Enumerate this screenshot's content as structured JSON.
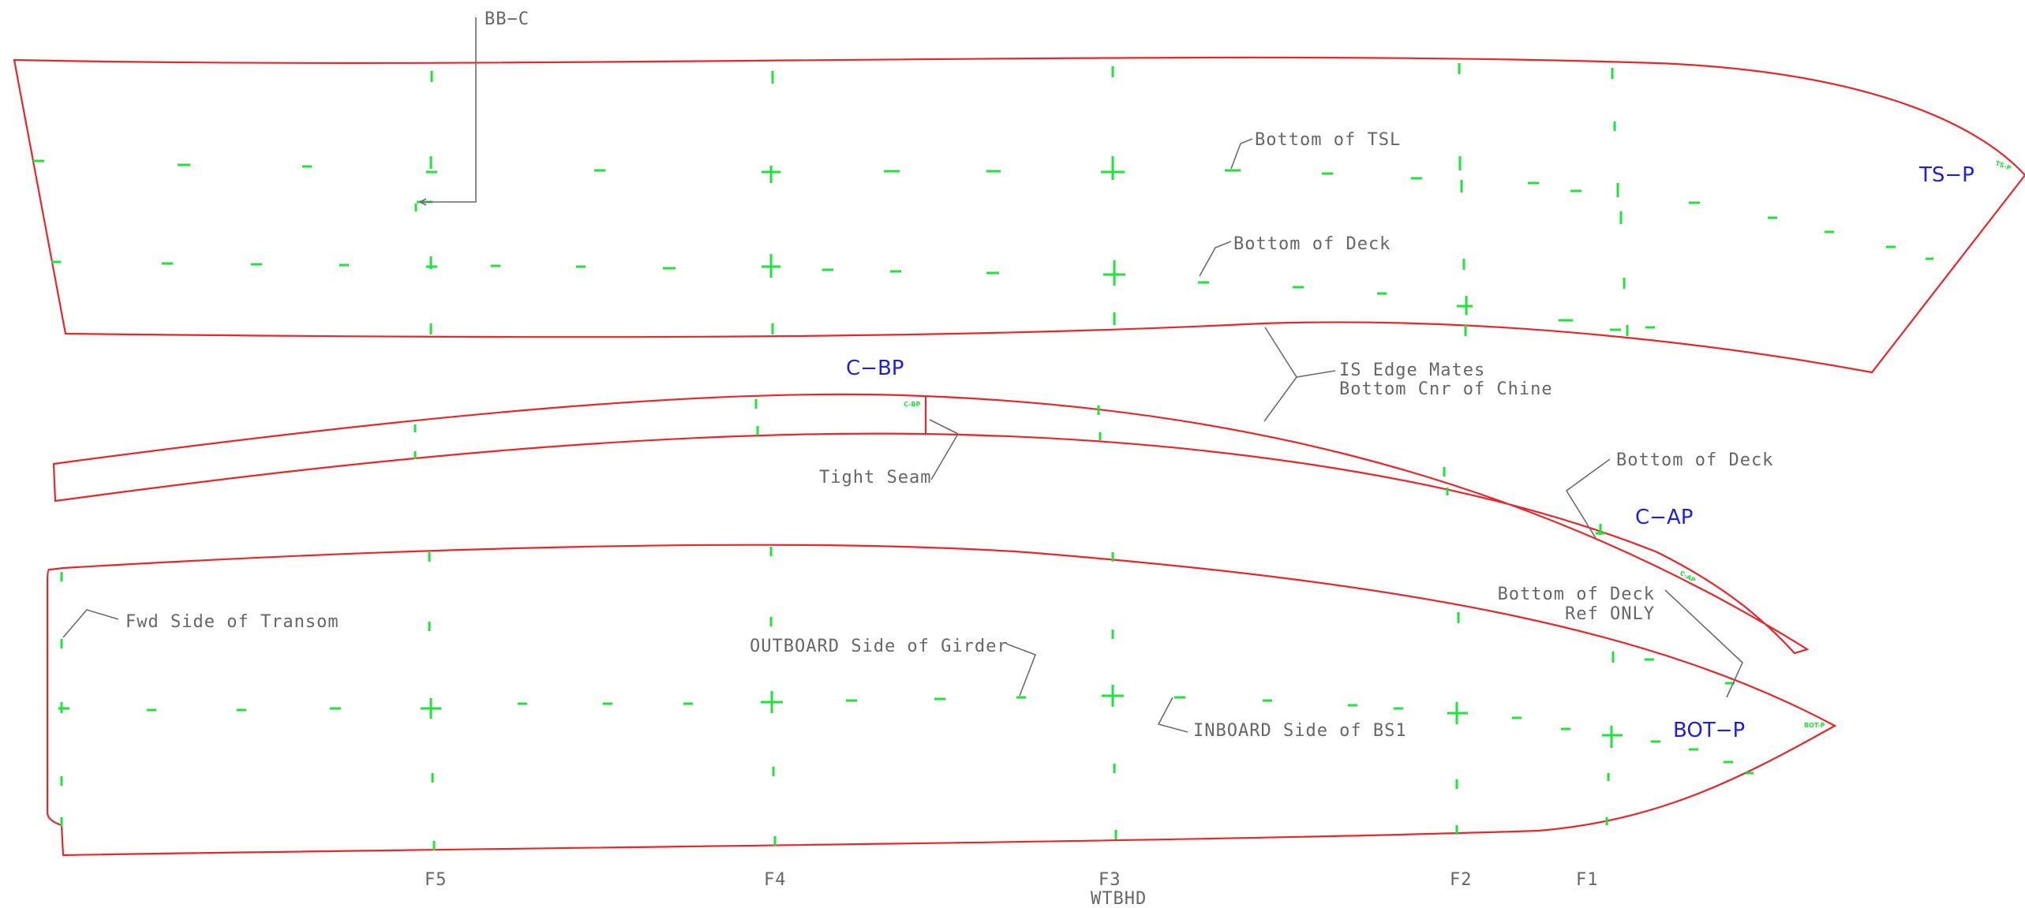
{
  "parts": {
    "ts_p": {
      "label": "TS−P",
      "tag": "TS-P"
    },
    "c_bp": {
      "label": "C−BP",
      "tag": "C-BP"
    },
    "c_ap": {
      "label": "C−AP",
      "tag": "C-AP"
    },
    "bot_p": {
      "label": "BOT−P",
      "tag": "BOT-P"
    }
  },
  "notes": {
    "bb_c": "BB−C",
    "bottom_of_tsl": "Bottom of TSL",
    "bottom_of_deck_top": "Bottom of Deck",
    "is_edge_line1": "IS Edge Mates",
    "is_edge_line2": "Bottom Cnr of Chine",
    "tight_seam": "Tight Seam",
    "bottom_of_deck_chine": "Bottom of Deck",
    "ref_line1": "Bottom of Deck",
    "ref_line2": "Ref ONLY",
    "fwd_side_transom": "Fwd Side of Transom",
    "outboard_girder": "OUTBOARD Side of Girder",
    "inboard_bs1": "INBOARD Side of BS1"
  },
  "frames": {
    "f5": "F5",
    "f4": "F4",
    "f3": "F3",
    "f3_sub": "WTBHD",
    "f2": "F2",
    "f1": "F1"
  },
  "colors": {
    "outline": "#e8262b",
    "marks": "#1fe33a",
    "part_labels": "#1f1fe0",
    "annotations": "#666666"
  }
}
